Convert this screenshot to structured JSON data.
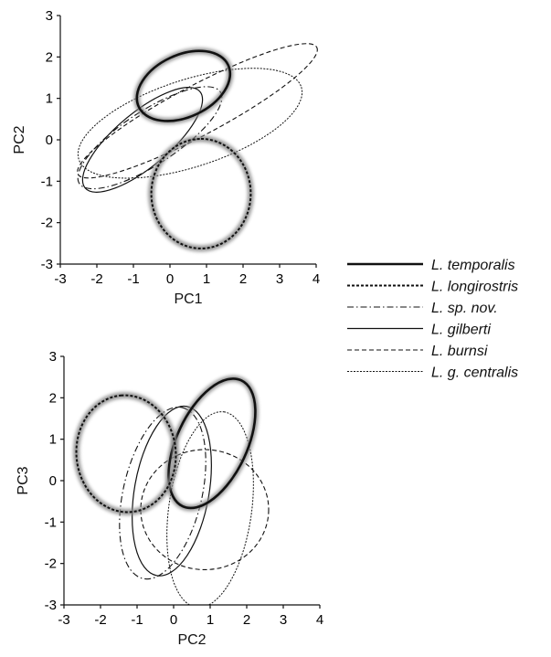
{
  "chart_data": [
    {
      "type": "scatter",
      "subtype": "confidence-ellipses",
      "xlabel": "PC1",
      "ylabel": "PC2",
      "xlim": [
        -3,
        4
      ],
      "ylim": [
        -3,
        3
      ],
      "xticks": [
        -3,
        -2,
        -1,
        0,
        1,
        2,
        3,
        4
      ],
      "yticks": [
        -3,
        -2,
        -1,
        0,
        1,
        2,
        3
      ],
      "grid": false,
      "series": [
        {
          "name": "L. temporalis",
          "style": "thick-halo-solid",
          "center": [
            0.37,
            1.3
          ],
          "semi_axes": [
            1.35,
            0.75
          ],
          "angle_deg": 25
        },
        {
          "name": "L. longirostris",
          "style": "thick-halo-dashed",
          "center": [
            0.85,
            -1.3
          ],
          "semi_axes": [
            1.5,
            1.2
          ],
          "angle_deg": 90
        },
        {
          "name": "L. sp. nov.",
          "style": "dash-dot",
          "center": [
            -0.55,
            0.05
          ],
          "semi_axes": [
            2.3,
            0.65
          ],
          "angle_deg": 33
        },
        {
          "name": "L. gilberti",
          "style": "solid",
          "center": [
            -0.75,
            0.0
          ],
          "semi_axes": [
            2.05,
            0.65
          ],
          "angle_deg": 40
        },
        {
          "name": "L. burnsi",
          "style": "dashed",
          "center": [
            0.75,
            0.7
          ],
          "semi_axes": [
            3.7,
            0.6
          ],
          "angle_deg": 28
        },
        {
          "name": "L. g. centralis",
          "style": "dotted",
          "center": [
            0.55,
            0.4
          ],
          "semi_axes": [
            3.2,
            1.05
          ],
          "angle_deg": 18
        }
      ]
    },
    {
      "type": "scatter",
      "subtype": "confidence-ellipses",
      "xlabel": "PC2",
      "ylabel": "PC3",
      "xlim": [
        -3,
        4
      ],
      "ylim": [
        -3,
        3
      ],
      "xticks": [
        -3,
        -2,
        -1,
        0,
        1,
        2,
        3,
        4
      ],
      "yticks": [
        -3,
        -2,
        -1,
        0,
        1,
        2,
        3
      ],
      "grid": false,
      "series": [
        {
          "name": "L. temporalis",
          "style": "thick-halo-solid",
          "center": [
            1.05,
            0.9
          ],
          "semi_axes": [
            1.9,
            0.85
          ],
          "angle_deg": 65
        },
        {
          "name": "L. longirostris",
          "style": "thick-halo-dashed",
          "center": [
            -1.3,
            0.65
          ],
          "semi_axes": [
            1.6,
            1.2
          ],
          "angle_deg": 95
        },
        {
          "name": "L. sp. nov.",
          "style": "dash-dot",
          "center": [
            -0.3,
            -0.3
          ],
          "semi_axes": [
            2.4,
            0.95
          ],
          "angle_deg": 77
        },
        {
          "name": "L. gilberti",
          "style": "solid",
          "center": [
            -0.05,
            -0.25
          ],
          "semi_axes": [
            2.35,
            0.9
          ],
          "angle_deg": 80
        },
        {
          "name": "L. burnsi",
          "style": "dashed",
          "center": [
            0.85,
            -0.7
          ],
          "semi_axes": [
            1.75,
            1.45
          ],
          "angle_deg": 0
        },
        {
          "name": "L. g. centralis",
          "style": "dotted",
          "center": [
            1.0,
            -0.7
          ],
          "semi_axes": [
            2.7,
            1.0
          ],
          "angle_deg": 82
        }
      ]
    }
  ],
  "legend": {
    "placement": "right-middle",
    "items": [
      {
        "label": "L. temporalis",
        "style": "thick-halo-solid"
      },
      {
        "label": "L. longirostris",
        "style": "thick-halo-dashed"
      },
      {
        "label": "L. sp. nov.",
        "style": "dash-dot"
      },
      {
        "label": "L. gilberti",
        "style": "solid"
      },
      {
        "label": "L. burnsi",
        "style": "dashed"
      },
      {
        "label": "L. g. centralis",
        "style": "dotted"
      }
    ]
  },
  "colors": {
    "line": "#111111",
    "halo": "#8a8a8a",
    "axis": "#111111"
  }
}
